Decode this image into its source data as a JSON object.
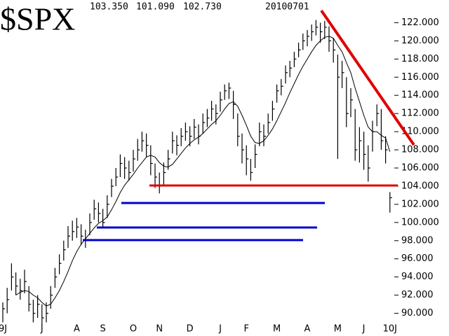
{
  "chart_data": {
    "type": "ohlc",
    "title": "$SPX",
    "quote": [
      {
        "value": 103.35,
        "label": "103.350"
      },
      {
        "value": 101.09,
        "label": "101.090"
      },
      {
        "value": 102.73,
        "label": "102.730"
      }
    ],
    "date": "20100701",
    "categories": [
      "9J",
      null,
      null,
      null,
      null,
      null,
      null,
      null,
      null,
      "J",
      null,
      null,
      null,
      null,
      null,
      null,
      null,
      "A",
      null,
      null,
      null,
      null,
      null,
      "S",
      null,
      null,
      null,
      null,
      null,
      null,
      "O",
      null,
      null,
      null,
      null,
      null,
      "N",
      null,
      null,
      null,
      null,
      null,
      null,
      "D",
      null,
      null,
      null,
      null,
      null,
      null,
      "J",
      null,
      null,
      null,
      null,
      null,
      "F",
      null,
      null,
      null,
      null,
      null,
      null,
      "M",
      null,
      null,
      null,
      null,
      null,
      null,
      "A",
      null,
      null,
      null,
      null,
      null,
      null,
      "M",
      null,
      null,
      null,
      null,
      null,
      "J",
      null,
      null,
      null,
      null,
      null,
      "10J"
    ],
    "high": [
      91.2,
      92.8,
      95.5,
      94.5,
      93.8,
      94.8,
      93,
      91.5,
      92,
      91,
      91.2,
      93,
      95,
      96.5,
      98,
      99.6,
      100.2,
      100.5,
      99.8,
      99.2,
      101,
      102.5,
      102.2,
      101.5,
      103,
      104.8,
      106,
      107.5,
      107.2,
      106.8,
      108,
      109.2,
      110,
      109.8,
      108.5,
      106.5,
      105.5,
      106.6,
      108,
      110,
      109.6,
      110.4,
      111,
      110.6,
      111.4,
      110.8,
      112,
      112.5,
      113.4,
      113,
      114.4,
      115.2,
      115.4,
      114.5,
      112,
      109.8,
      108.5,
      107,
      108.6,
      111,
      110.8,
      112,
      113.4,
      115.2,
      115.8,
      117.3,
      117.8,
      118.8,
      119.8,
      120.8,
      121.2,
      121.8,
      122.3,
      122,
      122.2,
      121.6,
      120.3,
      118.5,
      117.8,
      116,
      114.8,
      112.5,
      110.5,
      110,
      108.5,
      111.2,
      113,
      112.5,
      109.5,
      103.35
    ],
    "low": [
      89,
      90,
      92.5,
      92,
      91.5,
      92.2,
      90.2,
      89,
      89.5,
      88.7,
      89,
      90.5,
      92.8,
      94.3,
      95.8,
      97.2,
      98,
      98.3,
      97.5,
      97.2,
      98.6,
      100.3,
      100,
      99.4,
      100.5,
      102.8,
      104,
      105,
      104.8,
      104.6,
      105.6,
      106.8,
      107.8,
      107.2,
      105.2,
      103.8,
      103.2,
      104,
      105.8,
      107.6,
      107.4,
      108.4,
      109,
      108.4,
      109.2,
      108.6,
      109.8,
      110.5,
      111.2,
      110.8,
      112.2,
      113.5,
      113.6,
      111.4,
      108.4,
      106.5,
      105.2,
      104.6,
      106,
      108.4,
      108.4,
      109.8,
      111.2,
      113.2,
      114,
      115.3,
      116,
      117.1,
      118.2,
      119,
      119.4,
      120,
      120.6,
      119.8,
      120.2,
      118.8,
      117.6,
      107,
      114.8,
      110.5,
      111.6,
      106.8,
      106.6,
      105.8,
      104.5,
      107.8,
      110.6,
      108,
      106.5,
      101.09
    ],
    "close": [
      90.5,
      91.5,
      94,
      93,
      92.5,
      93.5,
      91,
      90,
      91,
      89.5,
      90,
      92,
      94,
      95.5,
      97,
      98.5,
      99,
      99.5,
      98.5,
      98,
      100,
      101.5,
      101,
      100,
      102,
      104,
      105,
      106.5,
      106,
      105.5,
      107,
      108,
      109,
      108.5,
      106.5,
      105,
      104,
      105.5,
      107,
      109,
      108.5,
      109.5,
      110,
      109.5,
      110.5,
      109.5,
      111,
      111.5,
      112.5,
      112,
      113.5,
      114.5,
      114.8,
      113,
      109.5,
      108,
      107,
      105.5,
      107.5,
      110,
      109.5,
      111,
      112.5,
      114.5,
      115,
      116.5,
      117,
      118,
      119,
      120,
      120.5,
      121,
      121.5,
      121,
      121.5,
      120,
      119,
      116,
      116.5,
      112,
      113.5,
      108,
      109,
      107.5,
      106,
      110,
      112,
      109,
      108,
      102.73
    ],
    "ma": [
      null,
      null,
      null,
      92,
      92.3,
      92.5,
      92.4,
      92,
      91.7,
      91.2,
      90.8,
      91,
      91.7,
      92.5,
      93.5,
      94.6,
      95.8,
      96.8,
      97.6,
      98.2,
      98.8,
      99.4,
      99.9,
      100.2,
      100.6,
      101.4,
      102.3,
      103.3,
      104.1,
      104.7,
      105.3,
      106,
      106.6,
      107.2,
      107.4,
      107.2,
      106.6,
      106.2,
      106.1,
      106.4,
      107,
      107.6,
      108.2,
      108.7,
      109.1,
      109.4,
      109.8,
      110.3,
      110.8,
      111.2,
      111.8,
      112.5,
      113.1,
      113.3,
      112.8,
      111.8,
      110.7,
      109.5,
      108.8,
      108.7,
      109,
      109.6,
      110.3,
      111.2,
      112.2,
      113.2,
      114.3,
      115.3,
      116.3,
      117.2,
      118,
      118.8,
      119.5,
      120,
      120.4,
      120.5,
      120.3,
      119.5,
      118.8,
      117.6,
      116.5,
      114.8,
      113.3,
      111.8,
      110.5,
      110,
      110,
      109.6,
      109.3,
      107.8
    ],
    "color": "#000000",
    "ylim": [
      87.5,
      124.5
    ],
    "yticks": [
      {
        "value": 90,
        "label": "90.000"
      },
      {
        "value": 92,
        "label": "92.000"
      },
      {
        "value": 94,
        "label": "94.000"
      },
      {
        "value": 96,
        "label": "96.000"
      },
      {
        "value": 98,
        "label": "98.000"
      },
      {
        "value": 100,
        "label": "100.000"
      },
      {
        "value": 102,
        "label": "102.000"
      },
      {
        "value": 104,
        "label": "104.000"
      },
      {
        "value": 106,
        "label": "106.000"
      },
      {
        "value": 108,
        "label": "108.000"
      },
      {
        "value": 110,
        "label": "110.000"
      },
      {
        "value": 112,
        "label": "112.000"
      },
      {
        "value": 114,
        "label": "114.000"
      },
      {
        "value": 116,
        "label": "116.000"
      },
      {
        "value": 118,
        "label": "118.000"
      },
      {
        "value": 120,
        "label": "120.000"
      },
      {
        "value": 122,
        "label": "122.000"
      }
    ],
    "grid": false
  }
}
